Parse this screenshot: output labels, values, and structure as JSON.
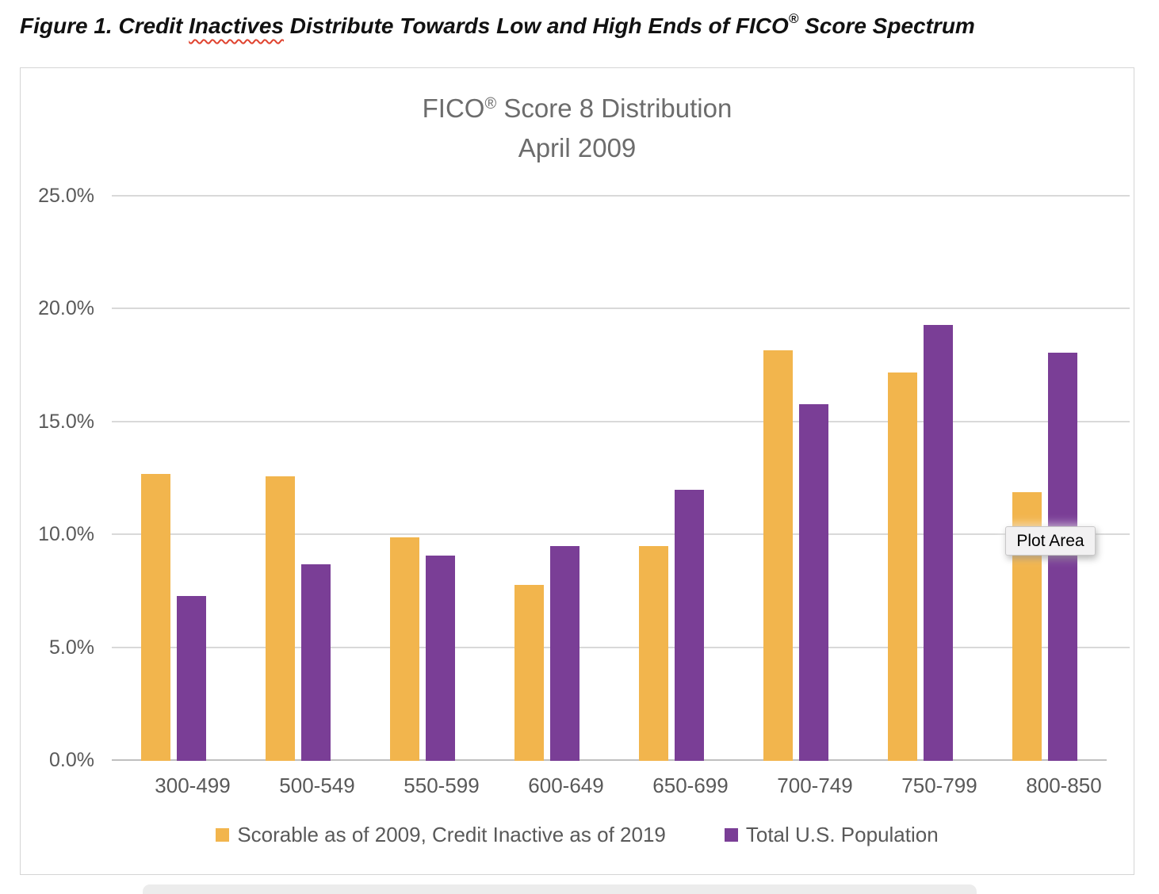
{
  "figure_caption": {
    "prefix": "Figure 1. Credit ",
    "misspelled_word": "Inactives",
    "middle": " Distribute Towards Low and High Ends of FICO",
    "registered_mark": "®",
    "suffix": " Score Spectrum"
  },
  "chart_data": {
    "type": "bar",
    "title": {
      "brand": "FICO",
      "registered_mark": "®",
      "rest": " Score 8 Distribution"
    },
    "subtitle": "April 2009",
    "categories": [
      "300-499",
      "500-549",
      "550-599",
      "600-649",
      "650-699",
      "700-749",
      "750-799",
      "800-850"
    ],
    "series": [
      {
        "name": "Scorable as of 2009, Credit Inactive as of 2019",
        "color": "#F2B54D",
        "values": [
          12.7,
          12.6,
          9.9,
          7.8,
          9.5,
          18.2,
          17.2,
          11.9
        ]
      },
      {
        "name": "Total U.S. Population",
        "color": "#7A3E96",
        "values": [
          7.3,
          8.7,
          9.1,
          9.5,
          12.0,
          15.8,
          19.3,
          18.1
        ]
      }
    ],
    "y_axis": {
      "tick_labels": [
        "0.0%",
        "5.0%",
        "10.0%",
        "15.0%",
        "20.0%",
        "25.0%"
      ],
      "tick_values": [
        0,
        5,
        10,
        15,
        20,
        25
      ],
      "ylim": [
        0,
        25
      ],
      "grid": true
    },
    "xlabel": "",
    "ylabel": "",
    "legend_position": "bottom",
    "tooltip": "Plot Area"
  },
  "colors": {
    "series_inactive": "#F2B54D",
    "series_population": "#7A3E96",
    "gridline": "#D9D9D9",
    "axis_line": "#BFBFBF",
    "axis_text": "#595959",
    "title_text": "#6C6C6C",
    "caption_text": "#111111",
    "spellcheck_squiggle": "#E0432F",
    "chart_border": "#D5D5D5",
    "tooltip_background": "#F2F1F2"
  }
}
